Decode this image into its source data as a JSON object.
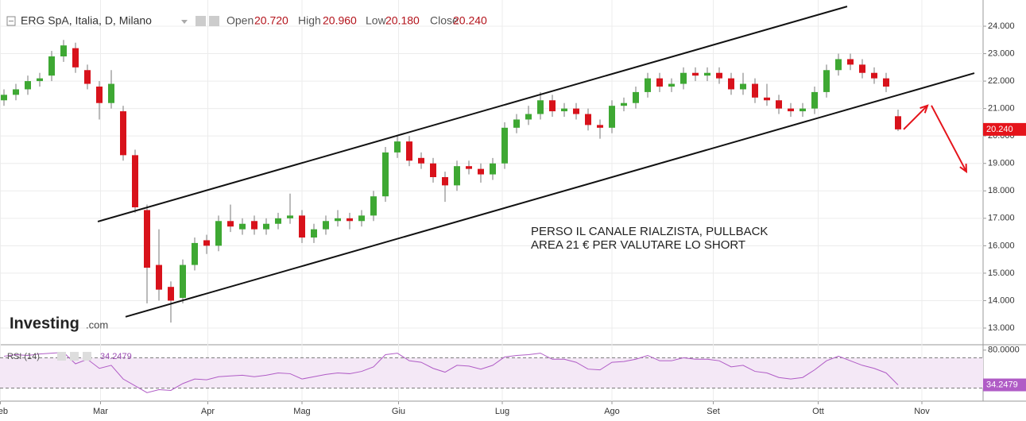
{
  "chart_data": [
    {
      "type": "candlestick",
      "title": "ERG SpA, Italia, D, Milano",
      "header_stats": [
        {
          "name": "Open",
          "value": "20.720"
        },
        {
          "name": "High",
          "value": "20.960"
        },
        {
          "name": "Low",
          "value": "20.180"
        },
        {
          "name": "Close",
          "value": "20.240"
        }
      ],
      "x": [
        0,
        1,
        2,
        3,
        4,
        5,
        6,
        7,
        8,
        9,
        10,
        11,
        12,
        13,
        14,
        15,
        16,
        17,
        18,
        19,
        20,
        21,
        22,
        23,
        24,
        25,
        26,
        27,
        28,
        29,
        30,
        31,
        32,
        33,
        34,
        35,
        36,
        37,
        38,
        39,
        40,
        41,
        42,
        43,
        44,
        45,
        46,
        47,
        48,
        49,
        50,
        51,
        52,
        53,
        54,
        55,
        56,
        57,
        58,
        59,
        60,
        61,
        62,
        63,
        64,
        65,
        66,
        67,
        68,
        69,
        70,
        71,
        72,
        73,
        74,
        75
      ],
      "open": [
        21.3,
        21.5,
        21.7,
        22.0,
        22.2,
        22.9,
        23.2,
        22.4,
        21.8,
        21.2,
        20.9,
        19.3,
        17.3,
        15.3,
        14.5,
        14.1,
        15.3,
        16.2,
        16.0,
        16.9,
        16.6,
        16.9,
        16.6,
        16.8,
        17.0,
        17.1,
        16.3,
        16.6,
        16.9,
        17.0,
        16.9,
        17.1,
        17.8,
        19.4,
        19.8,
        19.2,
        19.0,
        18.5,
        18.2,
        18.9,
        18.8,
        18.6,
        19.0,
        20.3,
        20.6,
        20.8,
        21.3,
        20.9,
        21.0,
        20.8,
        20.4,
        20.3,
        21.1,
        21.2,
        21.6,
        22.1,
        21.8,
        21.9,
        22.3,
        22.2,
        22.3,
        22.1,
        21.7,
        21.9,
        21.4,
        21.3,
        21.0,
        20.9,
        21.0,
        21.6,
        22.4,
        22.8,
        22.6,
        22.3,
        22.1,
        20.72
      ],
      "high": [
        21.7,
        21.9,
        22.2,
        22.3,
        23.1,
        23.5,
        23.4,
        22.6,
        22.0,
        22.4,
        21.1,
        19.5,
        17.5,
        16.6,
        14.7,
        15.5,
        16.3,
        16.4,
        17.1,
        17.5,
        17.0,
        17.1,
        17.0,
        17.2,
        17.9,
        17.3,
        16.8,
        17.1,
        17.3,
        17.2,
        17.3,
        18.0,
        19.6,
        20.0,
        20.0,
        19.4,
        19.2,
        18.7,
        19.1,
        19.1,
        19.0,
        19.2,
        20.5,
        20.8,
        21.1,
        21.6,
        21.5,
        21.2,
        21.2,
        21.0,
        20.6,
        21.3,
        21.4,
        21.8,
        22.3,
        22.3,
        22.1,
        22.5,
        22.5,
        22.5,
        22.5,
        22.3,
        22.3,
        22.1,
        21.9,
        21.5,
        21.2,
        21.2,
        21.8,
        22.6,
        23.0,
        23.0,
        22.8,
        22.5,
        22.3,
        20.96
      ],
      "low": [
        21.1,
        21.3,
        21.5,
        21.8,
        22.0,
        22.7,
        22.3,
        21.7,
        20.6,
        21.0,
        19.1,
        17.2,
        13.9,
        14.0,
        13.2,
        13.9,
        15.1,
        15.7,
        15.8,
        16.5,
        16.4,
        16.4,
        16.4,
        16.6,
        16.8,
        16.1,
        16.1,
        16.4,
        16.7,
        16.6,
        16.7,
        16.9,
        17.6,
        19.2,
        18.9,
        18.8,
        18.3,
        17.6,
        18.0,
        18.6,
        18.3,
        18.4,
        18.8,
        20.1,
        20.4,
        20.6,
        20.7,
        20.7,
        20.6,
        20.2,
        19.9,
        20.1,
        20.9,
        21.0,
        21.4,
        21.6,
        21.6,
        21.7,
        22.0,
        22.0,
        21.9,
        21.5,
        21.5,
        21.2,
        21.1,
        20.8,
        20.7,
        20.7,
        20.8,
        21.4,
        22.2,
        22.4,
        22.1,
        21.9,
        21.6,
        20.18
      ],
      "close": [
        21.5,
        21.7,
        22.0,
        22.1,
        22.9,
        23.3,
        22.5,
        21.9,
        21.2,
        21.9,
        19.3,
        17.4,
        15.2,
        14.4,
        14.0,
        15.3,
        16.1,
        16.0,
        16.9,
        16.7,
        16.8,
        16.6,
        16.8,
        17.0,
        17.1,
        16.3,
        16.6,
        16.9,
        17.0,
        16.9,
        17.1,
        17.8,
        19.4,
        19.8,
        19.1,
        19.0,
        18.5,
        18.2,
        18.9,
        18.8,
        18.6,
        19.0,
        20.3,
        20.6,
        20.8,
        21.3,
        20.9,
        21.0,
        20.8,
        20.4,
        20.3,
        21.1,
        21.2,
        21.6,
        22.1,
        21.8,
        21.9,
        22.3,
        22.2,
        22.3,
        22.1,
        21.7,
        21.9,
        21.4,
        21.3,
        21.0,
        20.9,
        21.0,
        21.6,
        22.4,
        22.8,
        22.6,
        22.3,
        22.1,
        21.8,
        20.24
      ],
      "up_color": "#3ea833",
      "down_color": "#d8121b",
      "xlim": [
        -0.333,
        82.133
      ],
      "xticks": [
        {
          "value": -0.3,
          "label": "Feb"
        },
        {
          "value": 8.1,
          "label": "Mar"
        },
        {
          "value": 17.1,
          "label": "Apr"
        },
        {
          "value": 25,
          "label": "Mag"
        },
        {
          "value": 33.1,
          "label": "Giu"
        },
        {
          "value": 41.8,
          "label": "Lug"
        },
        {
          "value": 51,
          "label": "Ago"
        },
        {
          "value": 59.5,
          "label": "Set"
        },
        {
          "value": 68.3,
          "label": "Ott"
        },
        {
          "value": 77,
          "label": "Nov"
        }
      ],
      "ylim": [
        12.45,
        24.955
      ],
      "yticks": [
        {
          "value": 13,
          "label": "13.000"
        },
        {
          "value": 14,
          "label": "14.000"
        },
        {
          "value": 15,
          "label": "15.000"
        },
        {
          "value": 16,
          "label": "16.000"
        },
        {
          "value": 17,
          "label": "17.000"
        },
        {
          "value": 18,
          "label": "18.000"
        },
        {
          "value": 19,
          "label": "19.000"
        },
        {
          "value": 20,
          "label": "20.000"
        },
        {
          "value": 21,
          "label": "21.000"
        },
        {
          "value": 22,
          "label": "22.000"
        },
        {
          "value": 23,
          "label": "23.000"
        },
        {
          "value": 24,
          "label": "24.000"
        }
      ],
      "grid": true,
      "last_price": {
        "value": 20.24,
        "label": "20.240"
      },
      "trendlines": [
        {
          "x": [
            7.87,
            70.73
          ],
          "y": [
            16.88,
            24.72
          ]
        },
        {
          "x": [
            10.2,
            81.4
          ],
          "y": [
            13.41,
            22.29
          ]
        }
      ],
      "arrows": [
        {
          "x": [
            75.47,
            77.47
          ],
          "y": [
            20.24,
            21.11
          ]
        },
        {
          "x": [
            77.8,
            80.73
          ],
          "y": [
            21.11,
            18.7
          ]
        }
      ],
      "arrow_color": "#e5141b",
      "annotation": [
        "PERSO IL CANALE RIALZISTA, PULLBACK",
        "AREA 21 € PER VALUTARE LO SHORT"
      ],
      "brand": [
        "Investing",
        ".com"
      ]
    },
    {
      "type": "line",
      "title": "RSI (14)",
      "color": "#b05cc6",
      "values": [
        72,
        74,
        73,
        75,
        76,
        77,
        62,
        68,
        56,
        60,
        42,
        33,
        24,
        28,
        27,
        36,
        42,
        41,
        45,
        46,
        47,
        45,
        47,
        50,
        49,
        42,
        45,
        48,
        50,
        49,
        52,
        58,
        74,
        76,
        66,
        64,
        56,
        51,
        60,
        59,
        55,
        60,
        71,
        73,
        74,
        76,
        68,
        68,
        64,
        55,
        54,
        64,
        65,
        68,
        73,
        66,
        66,
        70,
        68,
        68,
        66,
        58,
        60,
        52,
        50,
        44,
        42,
        44,
        54,
        66,
        72,
        66,
        60,
        56,
        50,
        34.2479
      ],
      "ylim": [
        16,
        85
      ],
      "yticks": [
        {
          "value": 80,
          "label": "80.0000"
        }
      ],
      "bands": [
        30,
        70
      ]
    }
  ]
}
